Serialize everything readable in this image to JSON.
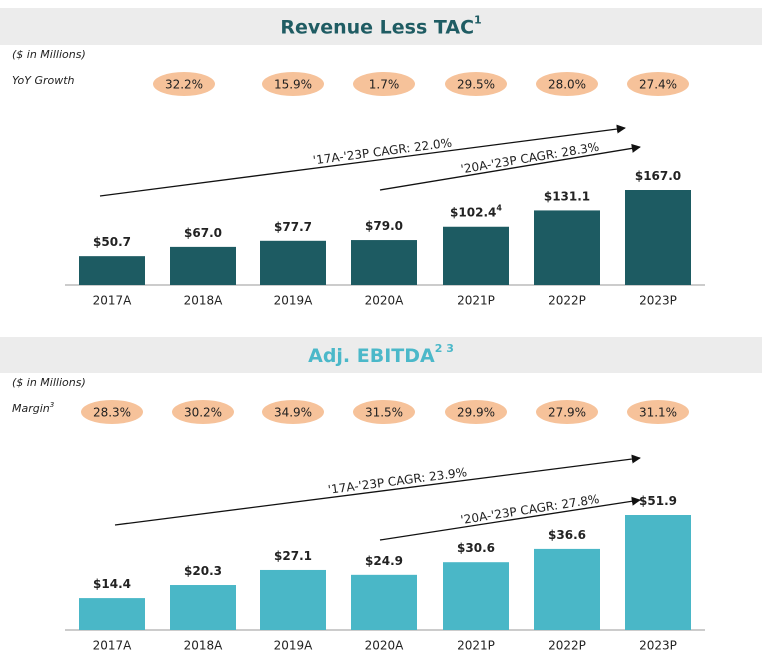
{
  "chart_data": [
    {
      "type": "bar",
      "title": "Revenue Less TAC",
      "title_note": "1",
      "unit_label": "($ in Millions)",
      "row_label": "YoY Growth",
      "row_label_note": null,
      "row_values": [
        "32.2%",
        "15.9%",
        "1.7%",
        "29.5%",
        "28.0%",
        "27.4%"
      ],
      "annotations": [
        "'17A-'23P CAGR: 22.0%",
        "'20A-'23P CAGR: 28.3%"
      ],
      "categories": [
        "2017A",
        "2018A",
        "2019A",
        "2020A",
        "2021P",
        "2022P",
        "2023P"
      ],
      "values": [
        50.7,
        67.0,
        77.7,
        79.0,
        102.4,
        131.1,
        167.0
      ],
      "value_labels": [
        "$50.7",
        "$67.0",
        "$77.7",
        "$79.0",
        "$102.4",
        "$131.1",
        "$167.0"
      ],
      "value_notes": [
        null,
        null,
        null,
        null,
        "4",
        null,
        null
      ],
      "color": "#1d5b62",
      "title_color": "#1f5c63"
    },
    {
      "type": "bar",
      "title": "Adj. EBITDA",
      "title_note": "2 3",
      "unit_label": "($ in Millions)",
      "row_label": "Margin",
      "row_label_note": "3",
      "row_values": [
        "28.3%",
        "30.2%",
        "34.9%",
        "31.5%",
        "29.9%",
        "27.9%",
        "31.1%"
      ],
      "annotations": [
        "'17A-'23P CAGR: 23.9%",
        "'20A-'23P CAGR: 27.8%"
      ],
      "categories": [
        "2017A",
        "2018A",
        "2019A",
        "2020A",
        "2021P",
        "2022P",
        "2023P"
      ],
      "values": [
        14.4,
        20.3,
        27.1,
        24.9,
        30.6,
        36.6,
        51.9
      ],
      "value_labels": [
        "$14.4",
        "$20.3",
        "$27.1",
        "$24.9",
        "$30.6",
        "$36.6",
        "$51.9"
      ],
      "value_notes": [
        null,
        null,
        null,
        null,
        null,
        null,
        null
      ],
      "color": "#4ab7c7",
      "title_color": "#4bb8c9"
    }
  ]
}
